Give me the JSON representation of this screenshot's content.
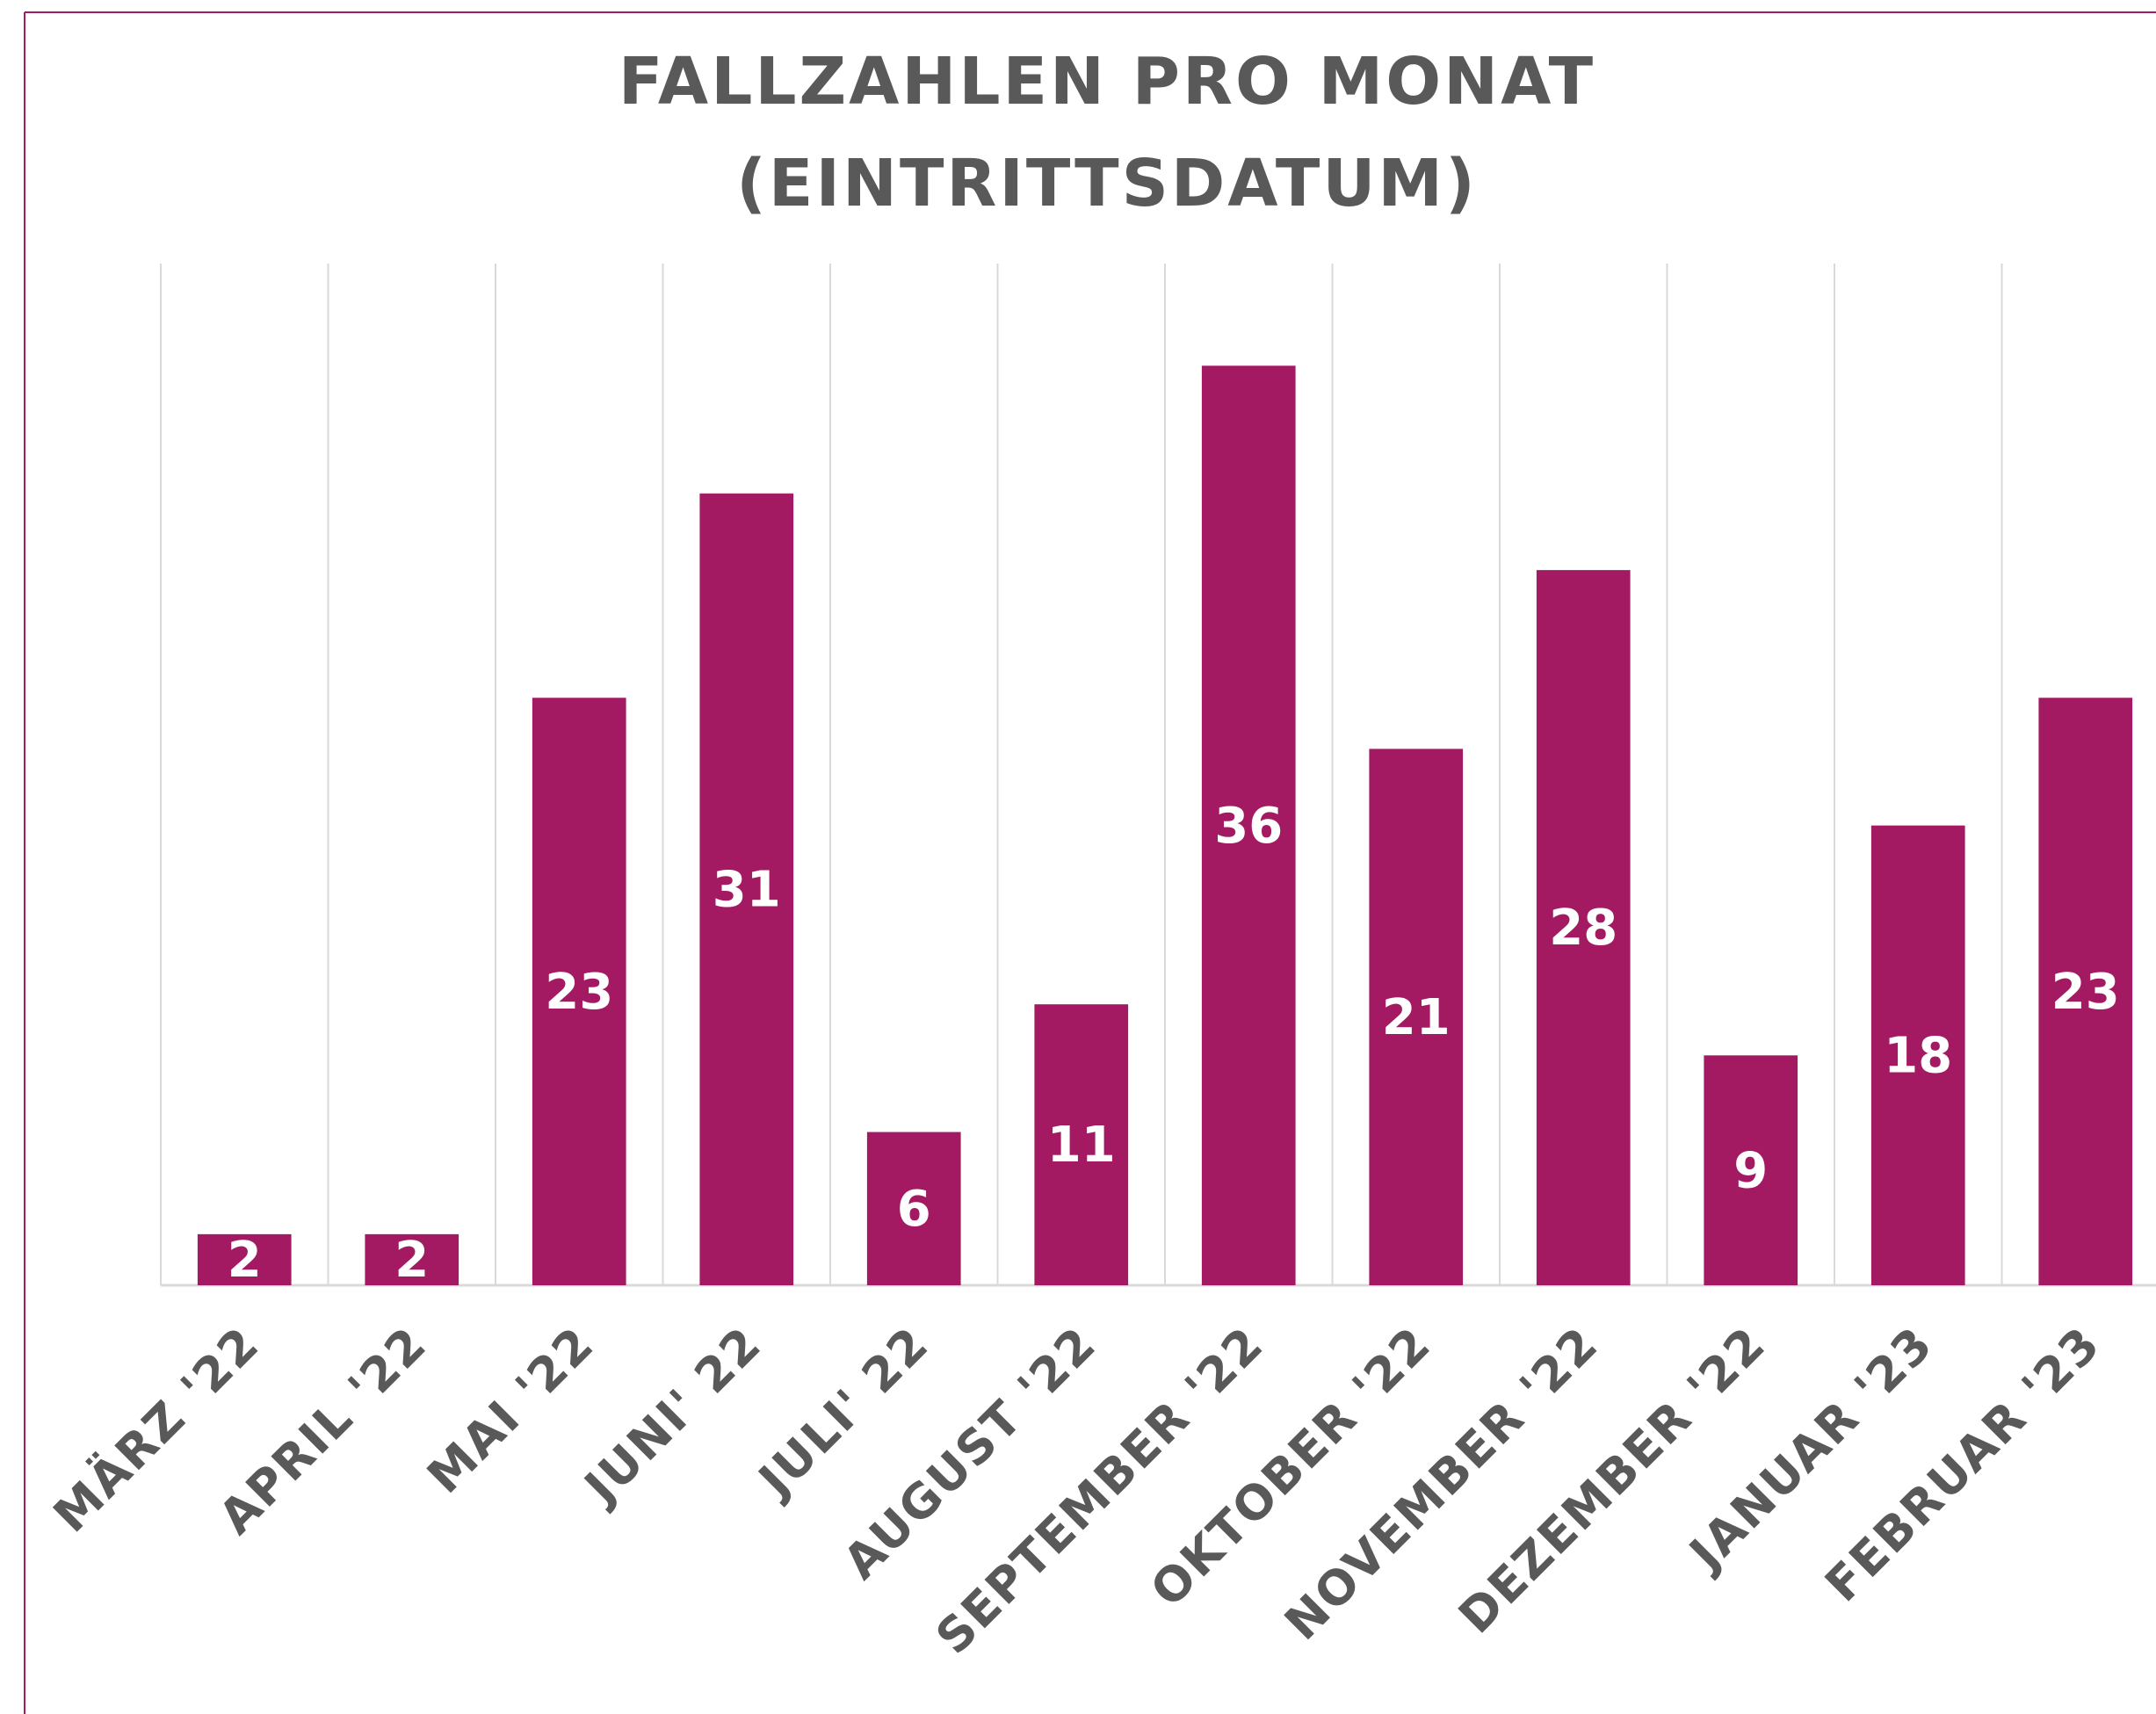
{
  "chart_data": {
    "type": "bar",
    "title": [
      "FALLZAHLEN PRO MONAT",
      "(EINTRITTSDATUM)"
    ],
    "categories": [
      "MÄRZ '22",
      "APRIL '22",
      "MAI '22",
      "JUNI' 22",
      "JULI' 22",
      "AUGUST '22",
      "SEPTEMBER '22",
      "OKTOBER '22",
      "NOVEMBER '22",
      "DEZEMBER '22",
      "JANUAR '23",
      "FEBRUAR '23"
    ],
    "values": [
      2,
      2,
      23,
      31,
      6,
      11,
      36,
      21,
      28,
      9,
      18,
      23
    ],
    "color": "#a31a63",
    "ylim": [
      0,
      40
    ]
  }
}
